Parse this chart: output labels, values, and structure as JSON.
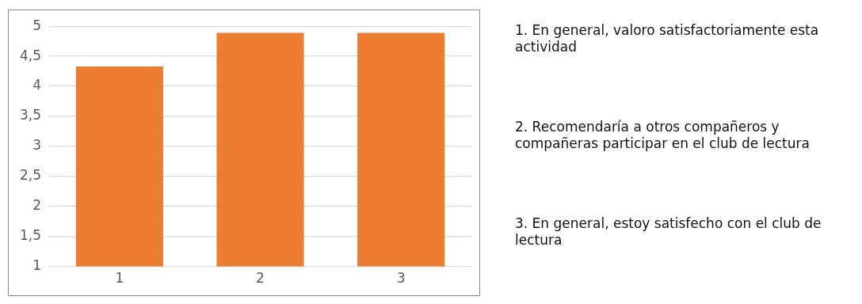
{
  "chart_data": {
    "type": "bar",
    "categories": [
      "1",
      "2",
      "3"
    ],
    "values": [
      4.33,
      4.89,
      4.89
    ],
    "color": "#ed7d31",
    "ylim": [
      1,
      5
    ],
    "yticks": [
      1,
      {
        "value": 1.5,
        "label": "1,5"
      },
      2,
      {
        "value": 2.5,
        "label": "2,5"
      },
      3,
      {
        "value": 3.5,
        "label": "3,5"
      },
      4,
      {
        "value": 4.5,
        "label": "4,5"
      },
      5
    ],
    "grid": "y",
    "legend": false,
    "annotations": [
      "1. En general, valoro satisfactoriamente esta actividad",
      "2. Recomendaría a otros compañeros y compañeras participar en el club de lectura",
      "3. En general, estoy satisfecho con el club de lectura"
    ]
  }
}
